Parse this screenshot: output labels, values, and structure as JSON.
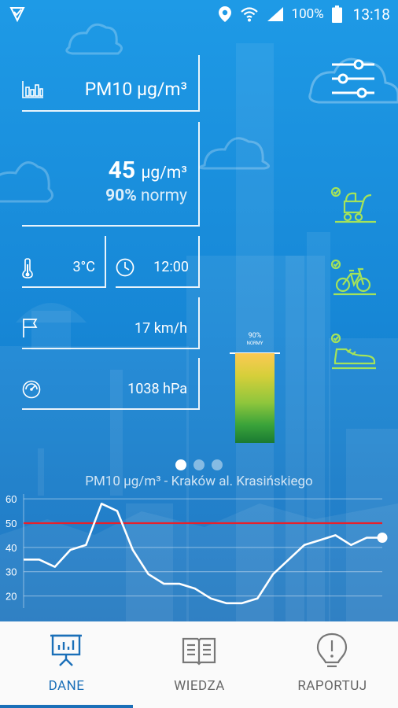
{
  "status_bar": {
    "battery": "100%",
    "time": "13:18",
    "icons": [
      "app-notification-icon",
      "location-icon",
      "wifi-icon",
      "signal-icon",
      "battery-icon"
    ]
  },
  "cards": {
    "pollutant": {
      "label": "PM10 µg/m³",
      "icon": "bar-chart-icon"
    },
    "reading": {
      "value": "45",
      "unit": "µg/m³",
      "percent": "90%",
      "norm_label": "normy"
    },
    "temperature": {
      "value": "3°C",
      "icon": "thermometer-icon"
    },
    "time": {
      "value": "12:00",
      "icon": "clock-icon"
    },
    "wind": {
      "value": "17 km/h",
      "icon": "flag-icon"
    },
    "pressure": {
      "value": "1038 hPa",
      "icon": "gauge-icon"
    }
  },
  "gauge": {
    "percent_label": "90%",
    "norm_label": "NORMY",
    "fill": 0.9
  },
  "activities": [
    "stroller-icon",
    "bicycle-icon",
    "running-shoe-icon"
  ],
  "pager": {
    "count": 3,
    "active": 0
  },
  "chart_data": {
    "type": "line",
    "title": "PM10 µg/m³ - Kraków al. Krasińskiego",
    "yticks": [
      20,
      30,
      40,
      50,
      60
    ],
    "ylim": [
      15,
      62
    ],
    "norm_line": 50,
    "x": [
      0,
      1,
      2,
      3,
      4,
      5,
      6,
      7,
      8,
      9,
      10,
      11,
      12,
      13,
      14,
      15,
      16,
      17,
      18,
      19,
      20,
      21,
      22,
      23
    ],
    "values": [
      35,
      35,
      32,
      39,
      41,
      58,
      55,
      39,
      29,
      25,
      25,
      23,
      19,
      17,
      17,
      19,
      29,
      35,
      41,
      43,
      45,
      41,
      44,
      44
    ],
    "colors": {
      "line": "#ffffff",
      "norm": "#e8202a"
    }
  },
  "nav": {
    "items": [
      {
        "label": "DANE",
        "icon": "presentation-icon",
        "active": true
      },
      {
        "label": "WIEDZA",
        "icon": "book-icon",
        "active": false
      },
      {
        "label": "RAPORTUJ",
        "icon": "alert-icon",
        "active": false
      }
    ]
  }
}
